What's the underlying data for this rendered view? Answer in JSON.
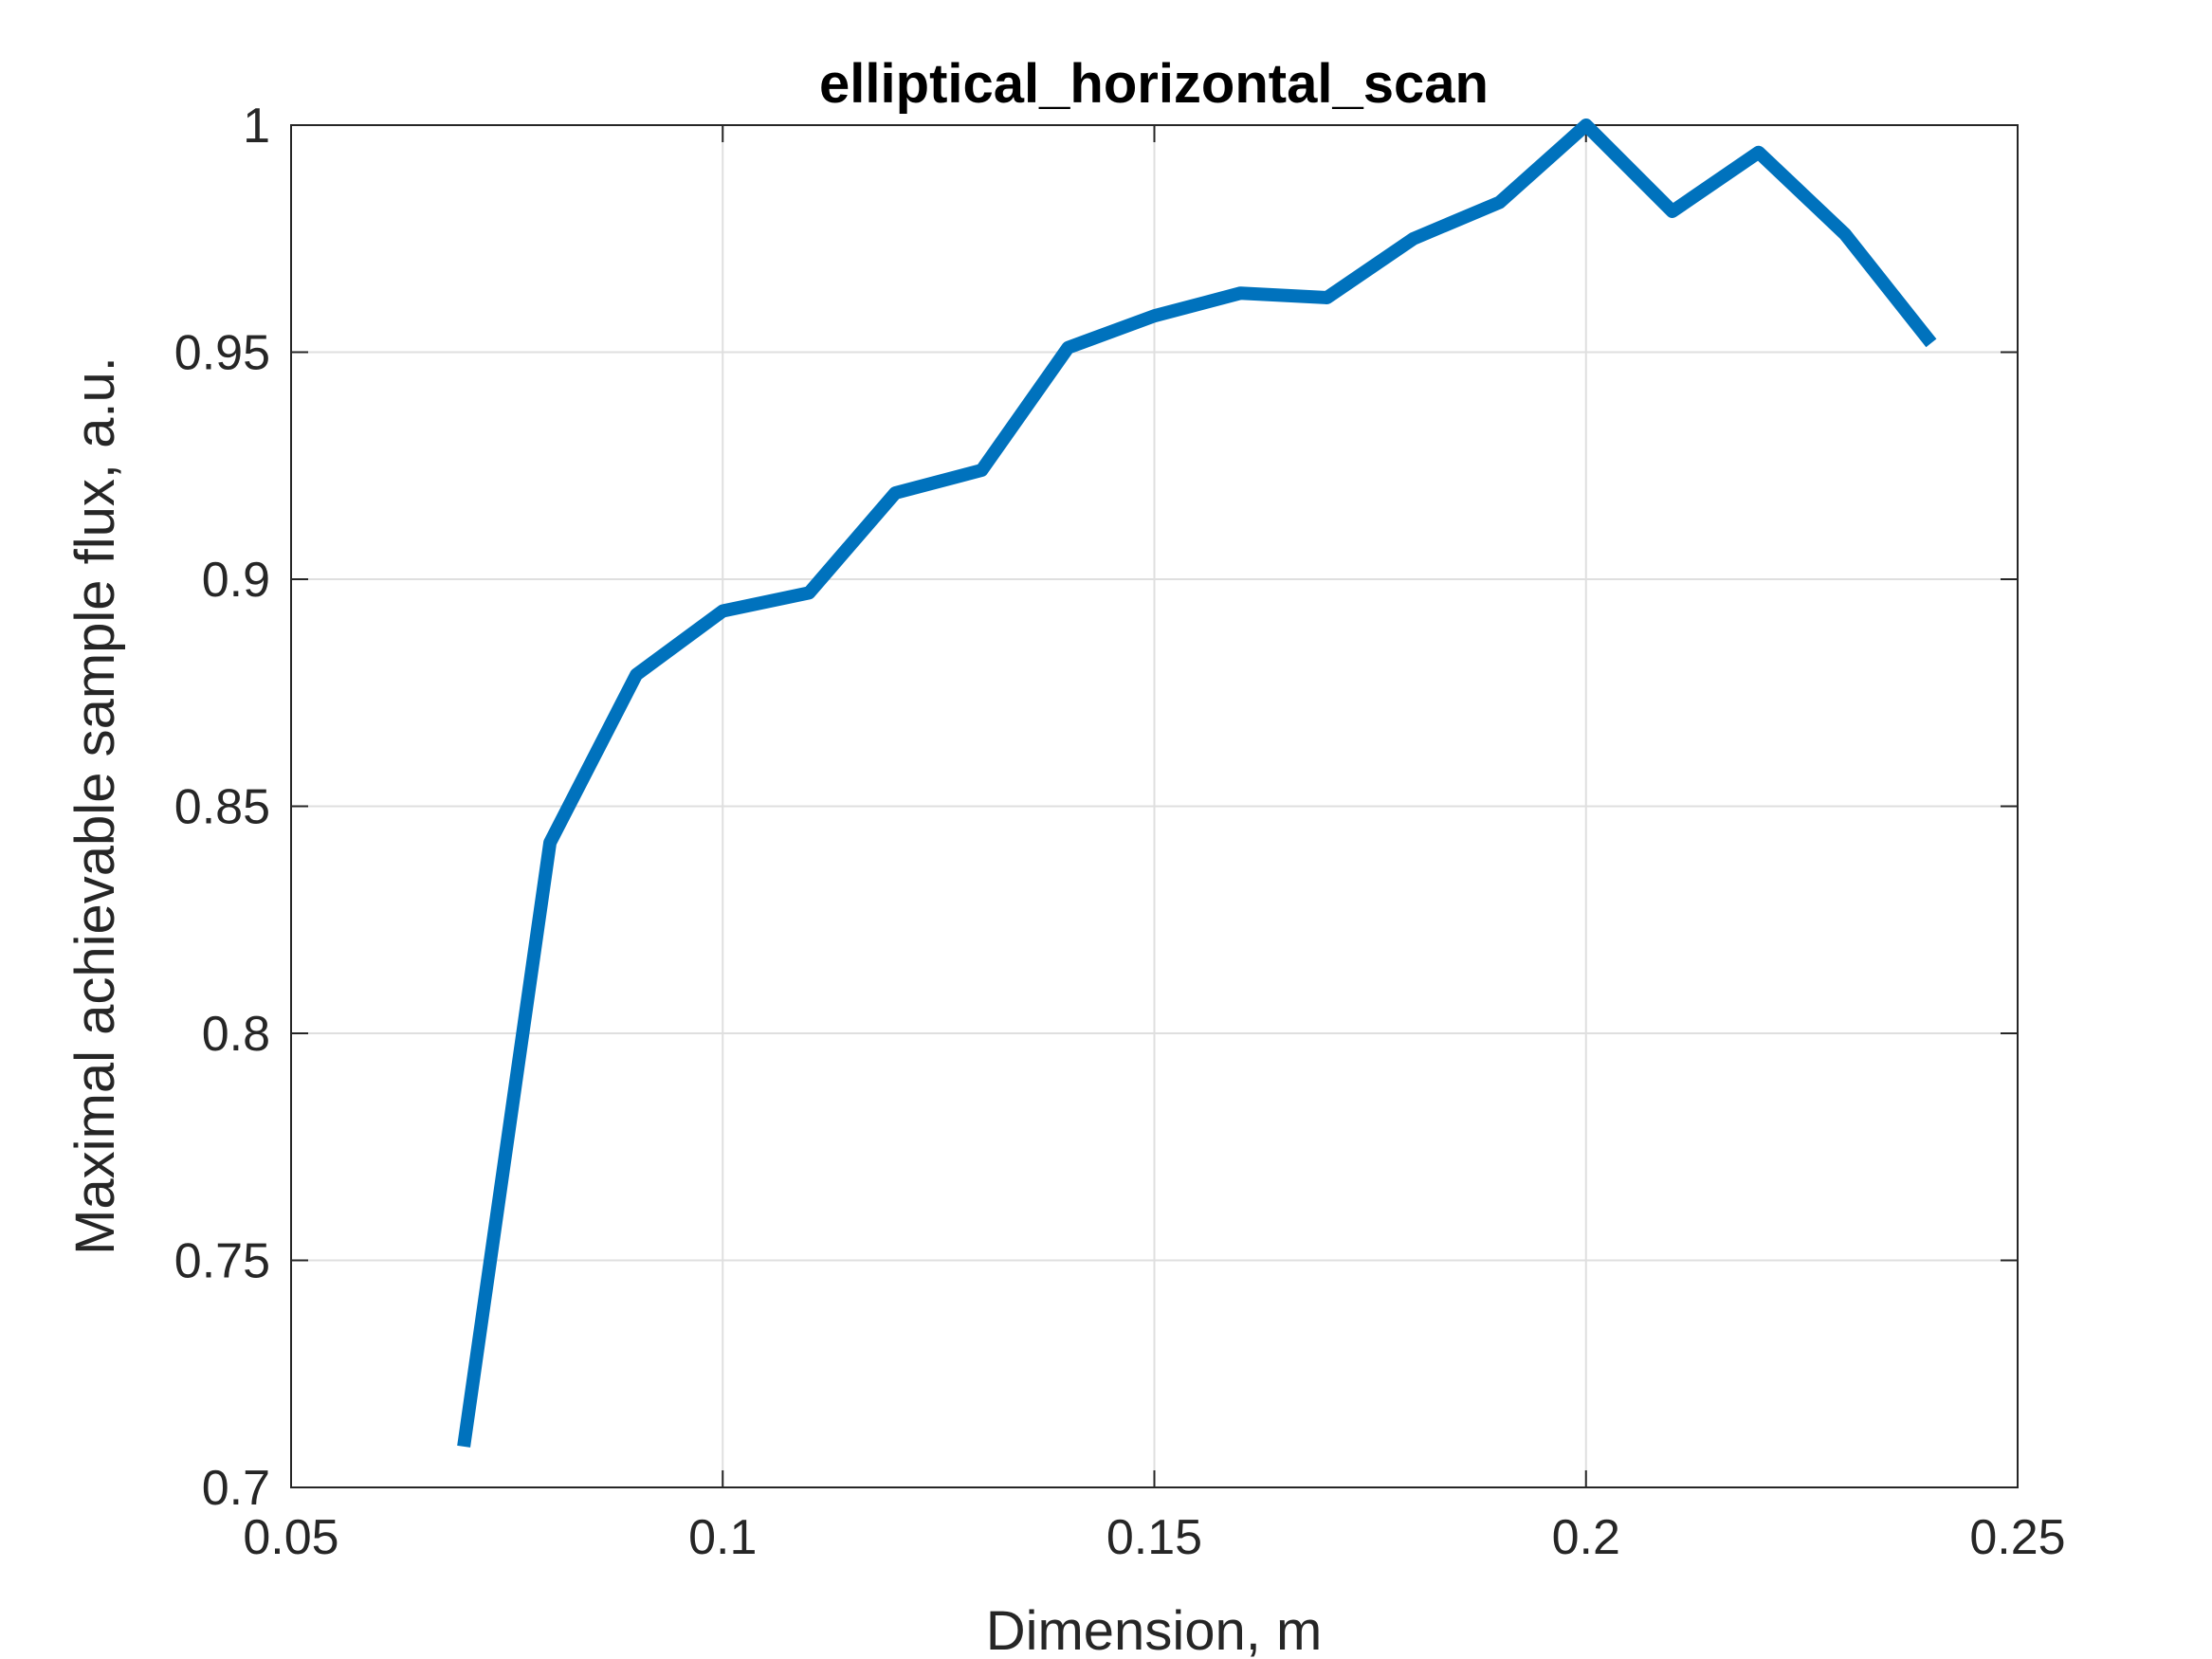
{
  "chart_data": {
    "type": "line",
    "title": "elliptical_horizontal_scan",
    "xlabel": "Dimension, m",
    "ylabel": "Maximal achievable sample flux, a.u.",
    "xlim": [
      0.05,
      0.25
    ],
    "ylim": [
      0.7,
      1.0
    ],
    "xticks": [
      0.05,
      0.1,
      0.15,
      0.2,
      0.25
    ],
    "xtick_labels": [
      "0.05",
      "0.1",
      "0.15",
      "0.2",
      "0.25"
    ],
    "yticks": [
      0.7,
      0.75,
      0.8,
      0.85,
      0.9,
      0.95,
      1.0
    ],
    "ytick_labels": [
      "0.7",
      "0.75",
      "0.8",
      "0.85",
      "0.9",
      "0.95",
      "1"
    ],
    "grid": true,
    "legend": "none",
    "series": [
      {
        "color": "#0072BD",
        "x": [
          0.07,
          0.08,
          0.09,
          0.1,
          0.11,
          0.12,
          0.13,
          0.14,
          0.15,
          0.16,
          0.17,
          0.18,
          0.19,
          0.2,
          0.21,
          0.22,
          0.23,
          0.24
        ],
        "y": [
          0.709,
          0.842,
          0.879,
          0.893,
          0.897,
          0.919,
          0.924,
          0.951,
          0.958,
          0.963,
          0.962,
          0.975,
          0.983,
          1.0,
          0.981,
          0.994,
          0.976,
          0.952
        ]
      }
    ]
  }
}
